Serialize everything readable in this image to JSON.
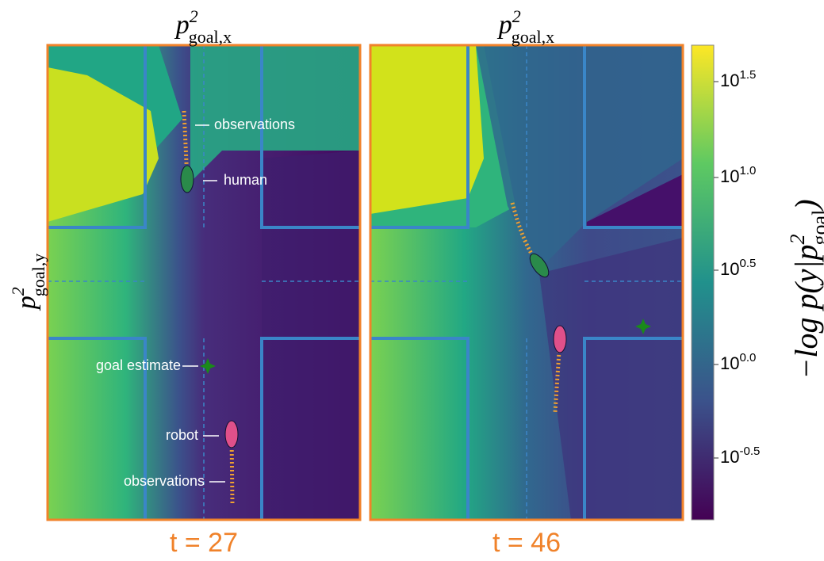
{
  "panels": [
    {
      "x_label": {
        "base": "p",
        "sup": "2",
        "sub": "goal,x"
      },
      "caption": "t = 27",
      "annotations": [
        "observations",
        "human",
        "goal estimate",
        "robot",
        "observations"
      ]
    },
    {
      "x_label": {
        "base": "p",
        "sup": "2",
        "sub": "goal,x"
      },
      "caption": "t = 46"
    }
  ],
  "y_label": {
    "base": "p",
    "sup": "2",
    "sub": "goal,y"
  },
  "colorbar": {
    "label": {
      "pre": "−log p(y|p",
      "sup": "2",
      "sub": "goal",
      "post": ")"
    },
    "ticks": [
      {
        "base": "10",
        "exp": "1.5"
      },
      {
        "base": "10",
        "exp": "1.0"
      },
      {
        "base": "10",
        "exp": "0.5"
      },
      {
        "base": "10",
        "exp": "0.0"
      },
      {
        "base": "10",
        "exp": "-0.5"
      }
    ]
  }
}
